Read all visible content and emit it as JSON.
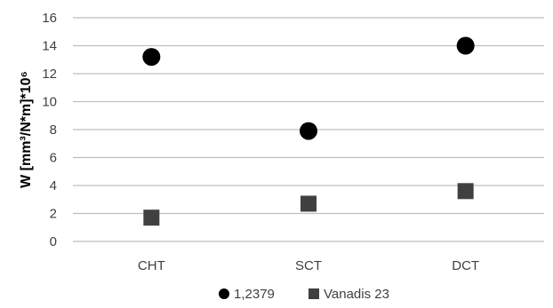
{
  "chart_data": {
    "type": "scatter",
    "categories": [
      "CHT",
      "SCT",
      "DCT"
    ],
    "series": [
      {
        "name": "1,2379",
        "values": [
          13.2,
          7.9,
          14.0
        ],
        "color": "#000000",
        "marker": "circle"
      },
      {
        "name": "Vanadis 23",
        "values": [
          1.7,
          2.7,
          3.6
        ],
        "color": "#404040",
        "marker": "square"
      }
    ],
    "title": "",
    "xlabel": "",
    "ylabel": "W [mm³/N*m]*10⁶",
    "ylim": [
      0,
      16
    ],
    "yticks": [
      0,
      2,
      4,
      6,
      8,
      10,
      12,
      14,
      16
    ],
    "grid": true,
    "legend_position": "bottom"
  }
}
